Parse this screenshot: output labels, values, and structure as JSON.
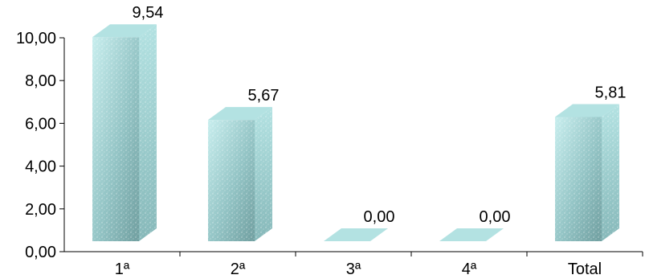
{
  "chart_data": {
    "type": "bar",
    "categories": [
      "1ª",
      "2ª",
      "3ª",
      "4ª",
      "Total"
    ],
    "values": [
      9.54,
      5.67,
      0.0,
      0.0,
      5.81
    ],
    "data_labels": [
      "9,54",
      "5,67",
      "0,00",
      "0,00",
      "5,81"
    ],
    "y_ticks": [
      "0,00",
      "2,00",
      "4,00",
      "6,00",
      "8,00",
      "10,00"
    ],
    "ylim": [
      0,
      10
    ],
    "grid": false,
    "legend": "none",
    "bar_style": "3d",
    "colors": {
      "front_light": "#c8eeee",
      "front_dark": "#6f9e9f",
      "side": "#9ecfcf",
      "top": "#b3e2e2",
      "axis": "#000000"
    }
  }
}
